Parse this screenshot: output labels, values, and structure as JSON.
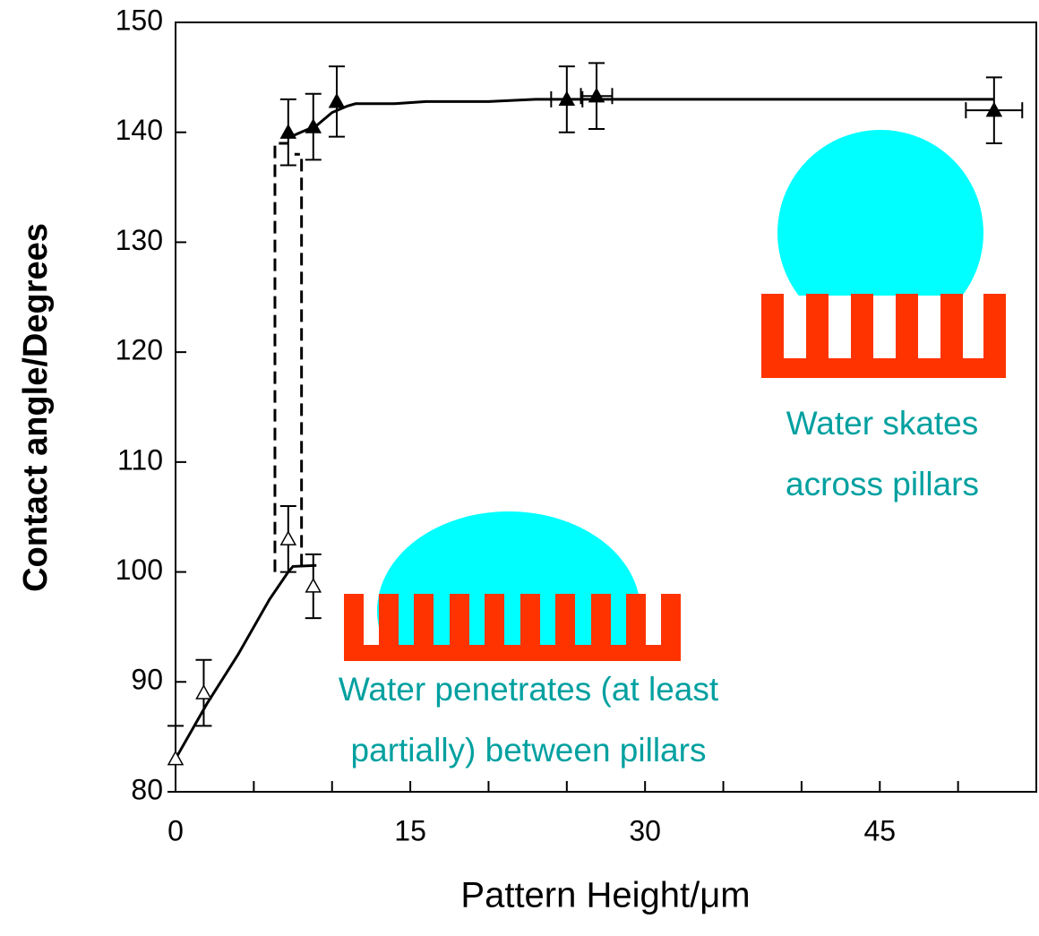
{
  "chart_data": {
    "type": "scatter",
    "xlabel": "Pattern Height/μm",
    "ylabel": "Contact angle/Degrees",
    "xlim": [
      0,
      55
    ],
    "ylim": [
      80,
      150
    ],
    "xticks": [
      0,
      15,
      30,
      45
    ],
    "xminorticks": [
      5,
      10,
      20,
      25,
      35,
      40,
      50
    ],
    "yticks": [
      80,
      90,
      100,
      110,
      120,
      130,
      140,
      150
    ],
    "series": [
      {
        "marker": "filled-triangle",
        "color": "#000000",
        "x": [
          7.2,
          8.8,
          10.3,
          25,
          26.9,
          52.3
        ],
        "values": [
          140,
          140.5,
          142.8,
          143,
          143.3,
          142
        ],
        "yerr": [
          3,
          3,
          3.2,
          3,
          3,
          3
        ],
        "xerr": [
          0,
          0,
          0,
          1,
          1,
          1.8
        ]
      },
      {
        "marker": "open-triangle",
        "color": "#000000",
        "x": [
          0,
          1.8,
          7.2,
          8.8
        ],
        "values": [
          83,
          89,
          103,
          98.7
        ],
        "yerr": [
          3,
          3,
          3,
          2.9
        ],
        "xerr": [
          0,
          0,
          0,
          0
        ]
      }
    ],
    "fits": [
      {
        "style": "solid",
        "x": [
          7.2,
          8,
          9,
          10,
          11,
          11.5,
          14,
          16,
          20,
          23,
          52.3
        ],
        "values": [
          139.5,
          140,
          140.6,
          141.8,
          142.4,
          142.6,
          142.6,
          142.8,
          142.8,
          143,
          143
        ]
      },
      {
        "style": "solid",
        "x": [
          0,
          2,
          4,
          6,
          7.2,
          7.5,
          9
        ],
        "values": [
          83,
          88,
          92.5,
          97.5,
          100,
          100.5,
          100.6
        ]
      },
      {
        "style": "dashed",
        "x": [
          6.35,
          6.35,
          7.2
        ],
        "values": [
          100,
          139,
          139
        ]
      },
      {
        "style": "dashed",
        "x": [
          8.05,
          8.05,
          7.6
        ],
        "values": [
          100.5,
          138,
          138
        ]
      }
    ],
    "annotations": [
      {
        "lines": [
          "Water skates",
          "across pillars"
        ]
      },
      {
        "lines": [
          "Water penetrates (at least",
          "partially) between pillars"
        ]
      }
    ]
  }
}
